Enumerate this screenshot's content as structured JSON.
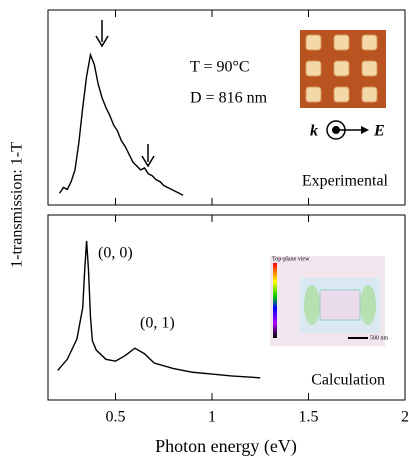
{
  "chart_data": [
    {
      "type": "line",
      "y_label": "1-transmission: 1-T",
      "label": "Experimental",
      "annotations": [
        "T = 90°C",
        "D = 816 nm",
        "k",
        "E"
      ],
      "x": [
        0.21,
        0.23,
        0.25,
        0.27,
        0.29,
        0.31,
        0.33,
        0.35,
        0.37,
        0.39,
        0.41,
        0.43,
        0.45,
        0.47,
        0.49,
        0.51,
        0.53,
        0.55,
        0.57,
        0.59,
        0.61,
        0.63,
        0.65,
        0.67,
        0.69,
        0.71,
        0.73,
        0.75,
        0.77,
        0.79,
        0.81,
        0.83,
        0.85
      ],
      "values": [
        0.06,
        0.09,
        0.08,
        0.12,
        0.18,
        0.32,
        0.5,
        0.66,
        0.77,
        0.72,
        0.62,
        0.55,
        0.5,
        0.46,
        0.41,
        0.38,
        0.33,
        0.3,
        0.26,
        0.22,
        0.2,
        0.18,
        0.19,
        0.16,
        0.15,
        0.13,
        0.12,
        0.1,
        0.09,
        0.08,
        0.07,
        0.06,
        0.05
      ],
      "color": "#000000",
      "xlim": [
        0.15,
        2
      ],
      "ylim": [
        0,
        1
      ]
    },
    {
      "type": "line",
      "x_label": "Photon energy (eV)",
      "label": "Calculation",
      "annotations": [
        "(0, 0)",
        "(0, 1)",
        "Top-plane view",
        "500 nm"
      ],
      "x": [
        0.2,
        0.25,
        0.3,
        0.33,
        0.34,
        0.35,
        0.36,
        0.37,
        0.38,
        0.4,
        0.45,
        0.5,
        0.55,
        0.6,
        0.65,
        0.7,
        0.8,
        0.9,
        1.0,
        1.1,
        1.25
      ],
      "values": [
        0.16,
        0.22,
        0.33,
        0.5,
        0.7,
        0.86,
        0.7,
        0.45,
        0.32,
        0.27,
        0.22,
        0.21,
        0.24,
        0.28,
        0.25,
        0.2,
        0.17,
        0.15,
        0.14,
        0.13,
        0.12
      ],
      "color": "#000000",
      "xlim": [
        0.15,
        2
      ],
      "ylim": [
        0,
        1
      ],
      "xticks": [
        0.5,
        1,
        1.5,
        2
      ]
    }
  ]
}
